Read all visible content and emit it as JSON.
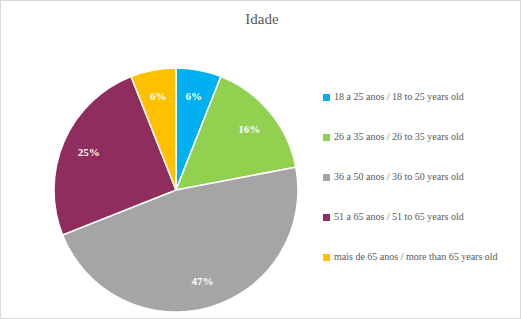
{
  "chart_data": {
    "type": "pie",
    "title": "Idade",
    "categories": [
      "18 a 25 anos / 18 to 25 years old",
      "26 a 35 anos / 26 to 35 years old",
      "36 a 50 anos / 36 to 50 years old",
      "51 a 65 anos / 51 to 65 years old",
      "mais de 65 anos / more than 65 years old"
    ],
    "values": [
      6,
      16,
      47,
      25,
      6
    ],
    "value_labels": [
      "6%",
      "16%",
      "47%",
      "25%",
      "6%"
    ],
    "colors": [
      "#00b0f0",
      "#92d050",
      "#a5a5a5",
      "#8e2d5e",
      "#ffc000"
    ],
    "data_labels": true,
    "legend": "right"
  }
}
